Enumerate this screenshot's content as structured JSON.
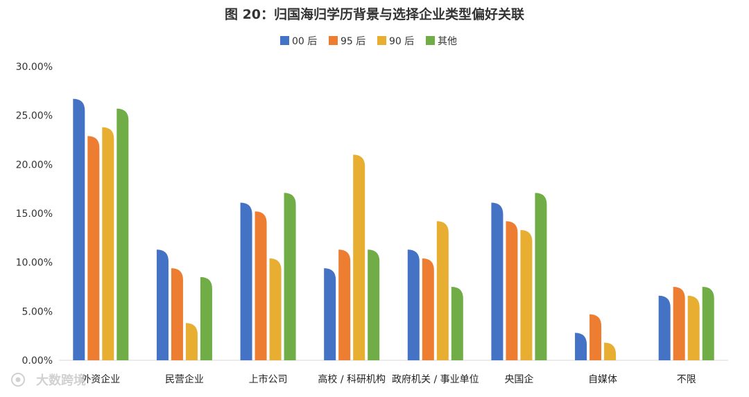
{
  "chart_data": {
    "type": "bar",
    "title": "图 20：归国海归学历背景与选择企业类型偏好关联",
    "categories": [
      "外资企业",
      "民营企业",
      "上市公司",
      "高校 / 科研机构",
      "政府机关 / 事业单位",
      "央国企",
      "自媒体",
      "不限"
    ],
    "series": [
      {
        "name": "00 后",
        "color": "#4472c4",
        "values": [
          26.7,
          11.3,
          16.1,
          9.4,
          11.3,
          16.1,
          2.8,
          6.6
        ]
      },
      {
        "name": "95 后",
        "color": "#ed7d31",
        "values": [
          22.9,
          9.4,
          15.2,
          11.3,
          10.4,
          14.2,
          4.7,
          7.5
        ]
      },
      {
        "name": "90 后",
        "color": "#e7ae32",
        "values": [
          23.8,
          3.8,
          10.4,
          21.0,
          14.2,
          13.3,
          1.8,
          6.6
        ]
      },
      {
        "name": "其他",
        "color": "#70ad47",
        "values": [
          25.7,
          8.5,
          17.1,
          11.3,
          7.5,
          17.1,
          null,
          7.5
        ]
      }
    ],
    "y_ticks": [
      "0.00%",
      "5.00%",
      "10.00%",
      "15.00%",
      "20.00%",
      "25.00%",
      "30.00%"
    ],
    "ylim": [
      0,
      30
    ],
    "legend_position": "top-center",
    "grid": false
  },
  "watermark": {
    "text": "大数跨境",
    "icon": "sun-logo-icon"
  }
}
